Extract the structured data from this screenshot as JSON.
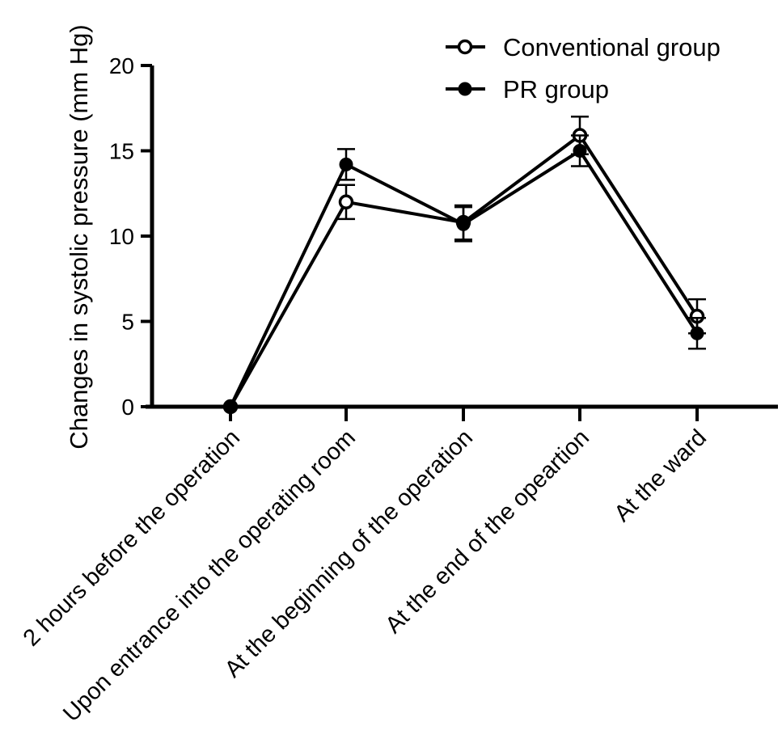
{
  "chart_data": {
    "type": "line",
    "title": "",
    "ylabel": "Changes in systolic pressure (mm Hg)",
    "xlabel": "",
    "categories": [
      "2 hours before the operation",
      "Upon entrance into the operating room",
      "At the beginning of the operation",
      "At the end of the opeartion",
      "At the ward"
    ],
    "ylim": [
      0,
      20
    ],
    "yticks": [
      "0",
      "5",
      "10",
      "15",
      "20"
    ],
    "series": [
      {
        "name": "Conventional group",
        "marker": "open-circle",
        "values": [
          0,
          12.0,
          10.8,
          15.9,
          5.3
        ],
        "errors": [
          0,
          1.0,
          1.0,
          1.1,
          1.0
        ]
      },
      {
        "name": "PR group",
        "marker": "filled-circle",
        "values": [
          0,
          14.2,
          10.7,
          15.0,
          4.3
        ],
        "errors": [
          0,
          0.9,
          1.0,
          0.9,
          0.9
        ]
      }
    ],
    "legend": "top-right",
    "grid": false,
    "colors": {
      "line": "#000000",
      "background": "#ffffff"
    }
  }
}
